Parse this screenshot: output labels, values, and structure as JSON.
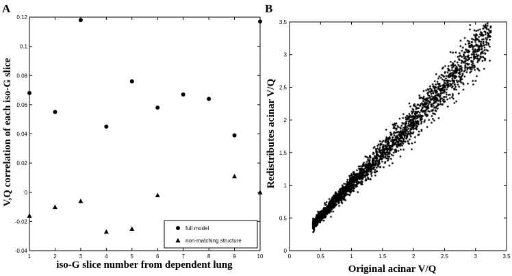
{
  "chart_data": [
    {
      "type": "scatter",
      "panel_label": "A",
      "xlabel": "iso-G slice number from dependent lung",
      "ylabel": "V,Q correlation of each iso-G slice",
      "xlim": [
        1,
        10
      ],
      "ylim": [
        -0.04,
        0.12
      ],
      "xticks": [
        "1",
        "2",
        "3",
        "4",
        "5",
        "6",
        "7",
        "8",
        "9",
        "10"
      ],
      "yticks": [
        "-0.04",
        "-0.02",
        "0",
        "0.02",
        "0.04",
        "0.06",
        "0.08",
        "0.1",
        "0.12"
      ],
      "legend_position": "bottom-right",
      "series": [
        {
          "name": "full model",
          "marker": "circle",
          "x": [
            1,
            2,
            3,
            4,
            5,
            6,
            7,
            8,
            9,
            10
          ],
          "y": [
            0.068,
            0.055,
            0.118,
            0.045,
            0.076,
            0.058,
            0.067,
            0.064,
            0.039,
            0.117
          ]
        },
        {
          "name": "non-matching structure",
          "marker": "triangle",
          "x": [
            1,
            2,
            3,
            4,
            5,
            6,
            9,
            10
          ],
          "y": [
            -0.016,
            -0.01,
            -0.006,
            -0.027,
            -0.025,
            -0.002,
            0.011,
            0.0
          ]
        }
      ]
    },
    {
      "type": "scatter",
      "panel_label": "B",
      "xlabel": "Original acinar V/Q",
      "ylabel": "Redistributes acinar V/Q",
      "xlim": [
        0,
        3.5
      ],
      "ylim": [
        0,
        3.5
      ],
      "xticks": [
        "0",
        "0.5",
        "1",
        "1.5",
        "2",
        "2.5",
        "3",
        "3.5"
      ],
      "yticks": [
        "0",
        "0.5",
        "1",
        "1.5",
        "2",
        "2.5",
        "3",
        "3.5"
      ],
      "marker": "star",
      "trend": {
        "x": [
          0.4,
          0.7,
          1.0,
          1.3,
          1.6,
          1.9,
          2.2,
          2.5,
          2.7
        ],
        "y": [
          0.42,
          0.72,
          1.02,
          1.3,
          1.58,
          1.88,
          2.2,
          2.5,
          2.72
        ],
        "x_range": [
          0.38,
          3.25
        ]
      }
    }
  ]
}
